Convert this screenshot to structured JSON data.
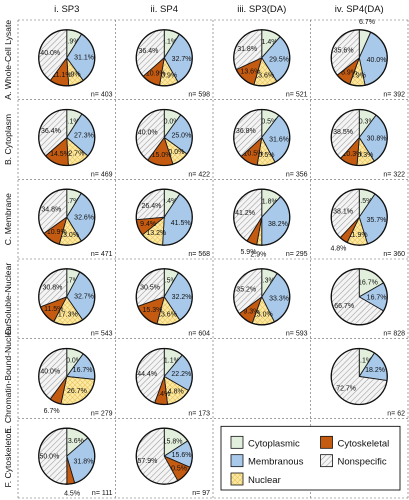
{
  "chart_data": {
    "type": "pie",
    "columns": [
      "i. SP3",
      "ii. SP4",
      "iii. SP3(DA)",
      "iv. SP4(DA)"
    ],
    "rows": [
      "A. Whole-Cell Lysate",
      "B. Cytoplasm",
      "C. Membrane",
      "D. Soluble-Nuclear",
      "E. Chromatin-Bound-Nuclear",
      "F. Cytoskeleton"
    ],
    "categories": [
      "Cytoplasmic",
      "Membranous",
      "Nuclear",
      "Cytoskeletal",
      "Nonspecific"
    ],
    "legend_order": [
      "Cytoplasmic",
      "Cytoskeletal",
      "Membranous",
      "Nonspecific",
      "Nuclear"
    ],
    "colors": {
      "Cytoplasmic": "#e2efdc",
      "Membranous": "#a9c9ea",
      "Nuclear": "#fbe9a2",
      "Cytoskeletal": "#c55a11",
      "Nonspecific": "#f2f2f2"
    },
    "panels": [
      {
        "row": 0,
        "col": 0,
        "n": "n= 403",
        "values": [
          8.9,
          31.1,
          8.9,
          11.1,
          40.0
        ],
        "labels": [
          "8.9%",
          "31.1%",
          "8.9%",
          "11.1%",
          "40.0%"
        ]
      },
      {
        "row": 0,
        "col": 1,
        "n": "n= 598",
        "values": [
          9.1,
          32.7,
          10.9,
          10.9,
          36.4
        ],
        "labels": [
          "9.1%",
          "32.7%",
          "10.9%",
          "10.9%",
          "36.4%"
        ]
      },
      {
        "row": 0,
        "col": 2,
        "n": "n= 521",
        "values": [
          11.4,
          29.5,
          13.6,
          13.6,
          31.8
        ],
        "labels": [
          "11.4%",
          "29.5%",
          "13.6%",
          "13.6%",
          "31.8%"
        ]
      },
      {
        "row": 0,
        "col": 3,
        "n": "n= 392",
        "values": [
          6.7,
          40.0,
          8.9,
          8.9,
          35.6
        ],
        "labels": [
          "6.7%",
          "40.0%",
          "8.9%",
          "8.9%",
          "35.6%"
        ]
      },
      {
        "row": 1,
        "col": 0,
        "n": "n= 469",
        "values": [
          9.1,
          27.3,
          12.7,
          14.5,
          36.4
        ],
        "labels": [
          "9.1%",
          "27.3%",
          "12.7%",
          "14.5%",
          "36.4%"
        ]
      },
      {
        "row": 1,
        "col": 1,
        "n": "n= 422",
        "values": [
          10.0,
          25.0,
          10.0,
          15.0,
          40.0
        ],
        "labels": [
          "10.0%",
          "25.0%",
          "10.0%",
          "15.0%",
          "40.0%"
        ]
      },
      {
        "row": 1,
        "col": 2,
        "n": "n= 356",
        "values": [
          10.5,
          31.6,
          10.5,
          10.5,
          36.8
        ],
        "labels": [
          "10.5%",
          "31.6%",
          "10.5%",
          "10.5%",
          "36.8%"
        ]
      },
      {
        "row": 1,
        "col": 3,
        "n": "n= 322",
        "values": [
          10.3,
          30.8,
          10.3,
          10.3,
          38.5
        ],
        "labels": [
          "10.3%",
          "30.8%",
          "10.3%",
          "10.3%",
          "38.5%"
        ]
      },
      {
        "row": 2,
        "col": 0,
        "n": "n= 471",
        "values": [
          8.7,
          32.6,
          13.0,
          10.9,
          34.8
        ],
        "labels": [
          "8.7%",
          "32.6%",
          "13.0%",
          "10.9%",
          "34.8%"
        ]
      },
      {
        "row": 2,
        "col": 1,
        "n": "n= 568",
        "values": [
          9.4,
          41.5,
          13.2,
          9.4,
          26.4
        ],
        "labels": [
          "9.4%",
          "41.5%",
          "13.2%",
          "9.4%",
          "26.4%"
        ]
      },
      {
        "row": 2,
        "col": 2,
        "n": "n= 295",
        "values": [
          11.8,
          38.2,
          2.9,
          5.9,
          41.2
        ],
        "labels": [
          "11.8%",
          "38.2%",
          "2.9%",
          "5.9%",
          "41.2%"
        ]
      },
      {
        "row": 2,
        "col": 3,
        "n": "n= 360",
        "values": [
          9.5,
          35.7,
          11.9,
          4.8,
          38.1
        ],
        "labels": [
          "9.5%",
          "35.7%",
          "11.9%",
          "4.8%",
          "38.1%"
        ]
      },
      {
        "row": 3,
        "col": 0,
        "n": "n= 543",
        "values": [
          7.7,
          32.7,
          17.3,
          11.5,
          30.8
        ],
        "labels": [
          "7.7%",
          "32.7%",
          "17.3%",
          "11.5%",
          "30.8%"
        ]
      },
      {
        "row": 3,
        "col": 1,
        "n": "n= 604",
        "values": [
          8.5,
          32.2,
          13.6,
          15.3,
          30.5
        ],
        "labels": [
          "8.5%",
          "32.2%",
          "13.6%",
          "15.3%",
          "30.5%"
        ]
      },
      {
        "row": 3,
        "col": 2,
        "n": "n= 593",
        "values": [
          9.3,
          33.3,
          13.0,
          9.3,
          35.2
        ],
        "labels": [
          "9.3%",
          "33.3%",
          "13.0%",
          "9.3%",
          "35.2%"
        ]
      },
      {
        "row": 3,
        "col": 3,
        "n": "n= 828",
        "values": [
          16.7,
          16.7,
          0,
          0,
          66.7
        ],
        "labels": [
          "16.7%",
          "16.7%",
          "",
          "",
          "66.7%"
        ]
      },
      {
        "row": 4,
        "col": 0,
        "n": "n= 279",
        "values": [
          10.0,
          16.7,
          26.7,
          6.7,
          40.0
        ],
        "labels": [
          "10.0%",
          "16.7%",
          "26.7%",
          "6.7%",
          "40.0%"
        ]
      },
      {
        "row": 4,
        "col": 1,
        "n": "n= 173",
        "values": [
          11.1,
          22.2,
          14.8,
          7.4,
          44.4
        ],
        "labels": [
          "11.1%",
          "22.2%",
          "14.8%",
          "7.4%",
          "44.4%"
        ]
      },
      {
        "row": 4,
        "col": 3,
        "n": "n= 62",
        "values": [
          9.1,
          18.2,
          0,
          0,
          72.7
        ],
        "labels": [
          "9.1%",
          "18.2%",
          "",
          "",
          "72.7%"
        ]
      },
      {
        "row": 5,
        "col": 0,
        "n": "n= 111",
        "values": [
          13.6,
          31.8,
          0,
          4.5,
          50.0
        ],
        "labels": [
          "13.6%",
          "31.8%",
          "",
          "4.5%",
          "50.0%"
        ]
      },
      {
        "row": 5,
        "col": 1,
        "n": "n= 97",
        "values": [
          15.8,
          15.6,
          0,
          10.5,
          57.9
        ],
        "labels": [
          "15.8%",
          "15.6%",
          "",
          "10.5%",
          "57.9%"
        ]
      }
    ]
  }
}
